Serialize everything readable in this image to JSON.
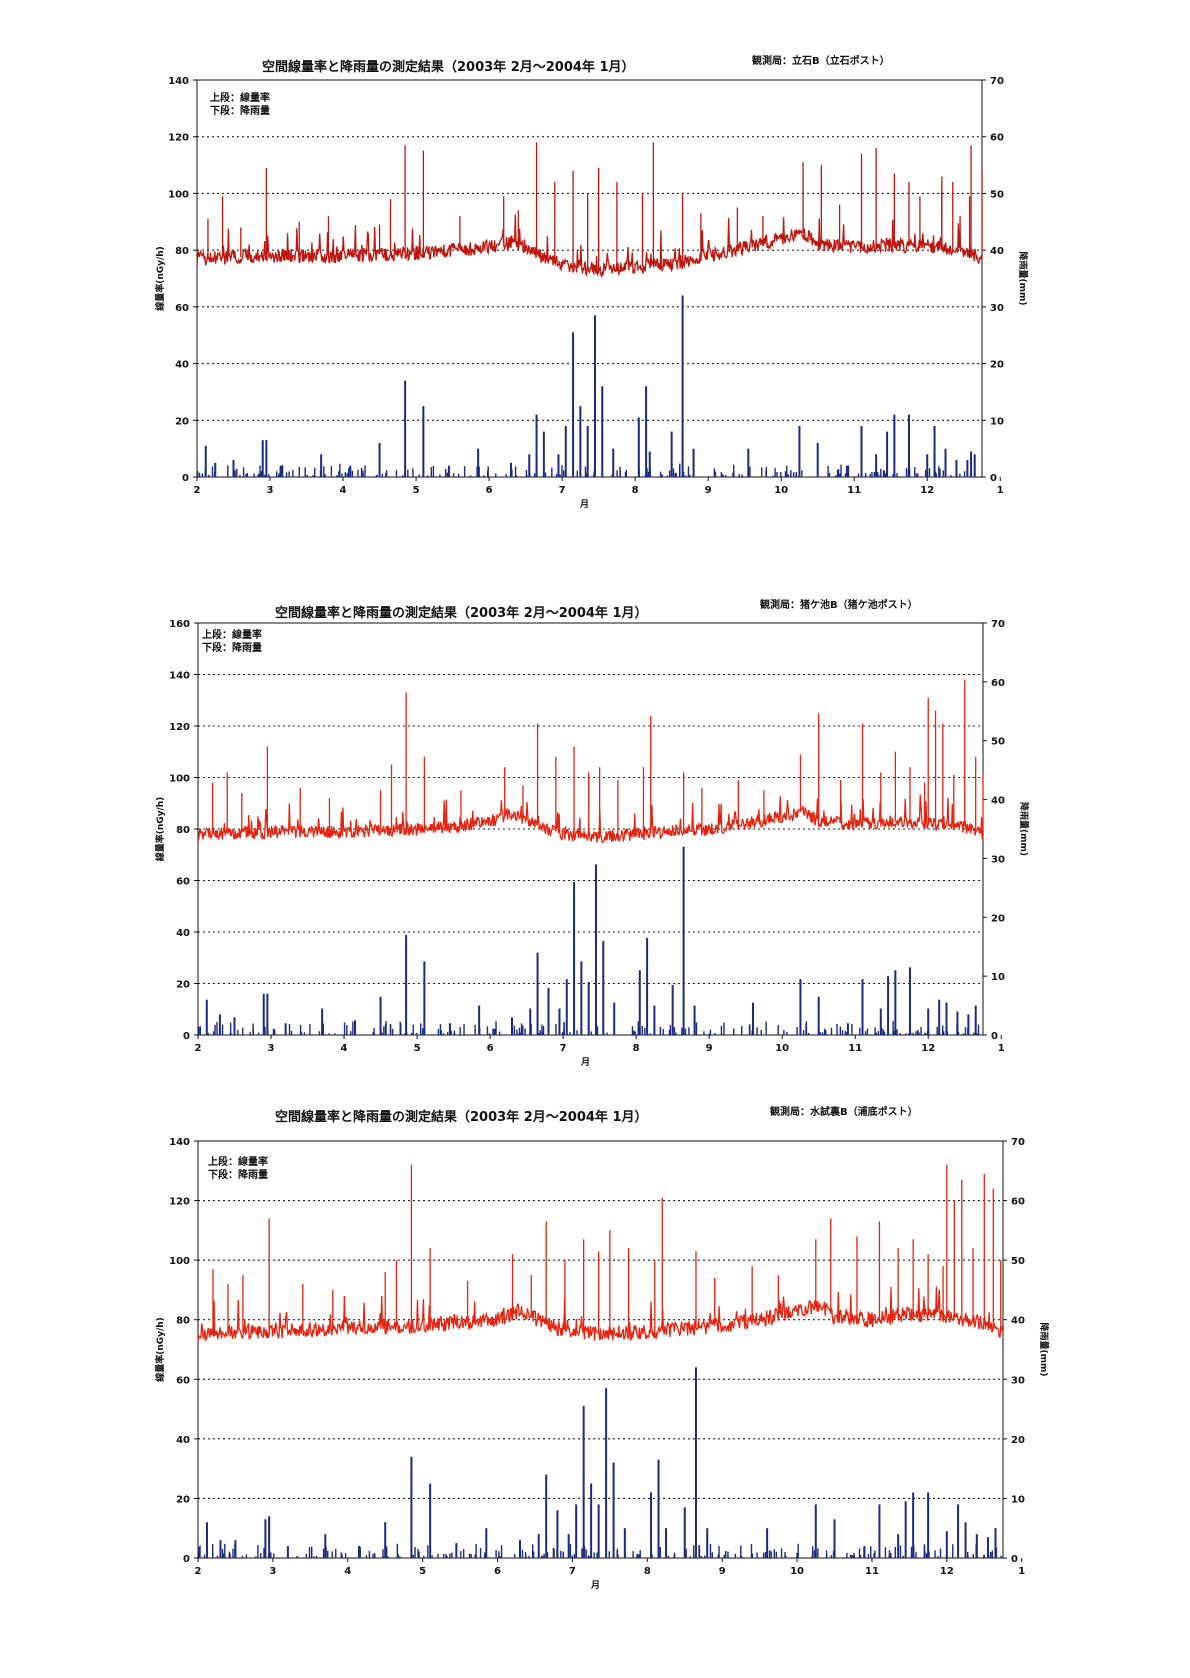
{
  "chart_data": [
    {
      "type": "line",
      "title": "空間線量率と降雨量の測定結果（2003年 2月～2004年 1月）",
      "station": "観測局：立石B（立石ポスト）",
      "legend": [
        "上段：線量率",
        "下段：降雨量"
      ],
      "xlabel": "月",
      "ylabel_left": "線量率(nGy/h)",
      "ylabel_right": "降雨量(mm)",
      "ylim_left": [
        0,
        140
      ],
      "ylim_right": [
        0,
        70
      ],
      "yticks_left": [
        0,
        20,
        40,
        60,
        80,
        100,
        120,
        140
      ],
      "yticks_right": [
        0,
        10,
        20,
        30,
        40,
        50,
        60,
        70
      ],
      "xticks": [
        "2",
        "3",
        "4",
        "5",
        "6",
        "7",
        "8",
        "9",
        "10",
        "11",
        "12",
        "1"
      ],
      "xlim": [
        2,
        12.75
      ],
      "grid": "dotted-horizontal",
      "colors": {
        "dose": "#c0140c",
        "rain": "#1a2a80"
      },
      "series": [
        {
          "kind": "dose_baseline",
          "x": [
            2,
            3,
            4,
            5,
            5.5,
            6,
            6.3,
            6.7,
            7,
            7.5,
            8,
            8.5,
            9,
            9.5,
            10,
            10.3,
            10.5,
            11,
            11.5,
            12,
            12.5,
            12.75
          ],
          "values": [
            77,
            78,
            78,
            79,
            80,
            81,
            83,
            78,
            75,
            73,
            74,
            75,
            78,
            81,
            84,
            86,
            82,
            81,
            82,
            81,
            80,
            77
          ]
        },
        {
          "kind": "dose_peaks",
          "x": [
            2.15,
            2.35,
            2.6,
            2.95,
            3.4,
            3.8,
            4.5,
            4.65,
            4.85,
            5.1,
            5.6,
            6.2,
            6.4,
            6.65,
            6.9,
            7.15,
            7.35,
            7.5,
            7.75,
            8.1,
            8.25,
            8.65,
            8.9,
            9.4,
            9.75,
            10.3,
            10.55,
            10.8,
            11.1,
            11.3,
            11.55,
            11.75,
            11.9,
            12.2,
            12.35,
            12.6,
            12.75,
            12.2,
            12.45,
            12.58
          ],
          "values": [
            91,
            99,
            88,
            109,
            90,
            92,
            89,
            98,
            117,
            115,
            92,
            99,
            94,
            118,
            104,
            108,
            100,
            109,
            104,
            100,
            118,
            100,
            93,
            95,
            92,
            111,
            110,
            96,
            114,
            116,
            107,
            104,
            99,
            106,
            104,
            117,
            108,
            101,
            92,
            99
          ]
        },
        {
          "kind": "rain",
          "x": [
            2.12,
            2.25,
            2.5,
            2.9,
            2.95,
            3.15,
            3.7,
            4.1,
            4.5,
            4.85,
            5.1,
            5.45,
            5.85,
            6.3,
            6.55,
            6.65,
            6.75,
            6.95,
            7.05,
            7.15,
            7.25,
            7.35,
            7.45,
            7.55,
            7.7,
            8.05,
            8.15,
            8.2,
            8.5,
            8.65,
            8.8,
            9.55,
            10.25,
            10.5,
            10.9,
            11.1,
            11.3,
            11.45,
            11.55,
            11.75,
            12.0,
            12.1,
            12.25,
            12.4,
            12.55,
            12.6,
            12.65
          ],
          "values": [
            5.5,
            2.5,
            3,
            6.5,
            6.5,
            2,
            4,
            2,
            6,
            17,
            12.5,
            2,
            5,
            2.5,
            4,
            11,
            8,
            4,
            9,
            25.5,
            12.5,
            9,
            28.5,
            16,
            5,
            10.5,
            16,
            4.5,
            8,
            32,
            5,
            5,
            9,
            6,
            2,
            9,
            4,
            8,
            11,
            11,
            4,
            9,
            5,
            3,
            3,
            4.5,
            4
          ]
        }
      ]
    },
    {
      "type": "line",
      "title": "空間線量率と降雨量の測定結果（2003年 2月～2004年 1月）",
      "station": "観測局：猪ケ池B（猪ケ池ポスト）",
      "legend": [
        "上段：線量率",
        "下段：降雨量"
      ],
      "xlabel": "月",
      "ylabel_left": "線量率(nGy/h)",
      "ylabel_right": "降雨量(mm)",
      "ylim_left": [
        0,
        160
      ],
      "ylim_right": [
        0,
        70
      ],
      "yticks_left": [
        0,
        20,
        40,
        60,
        80,
        100,
        120,
        140,
        160
      ],
      "yticks_right": [
        0,
        10,
        20,
        30,
        40,
        50,
        60,
        70
      ],
      "xticks": [
        "2",
        "3",
        "4",
        "5",
        "6",
        "7",
        "8",
        "9",
        "10",
        "11",
        "12",
        "1"
      ],
      "xlim": [
        2,
        12.75
      ],
      "grid": "dotted-horizontal",
      "colors": {
        "dose": "#e8220e",
        "rain": "#1a2a80"
      },
      "series": [
        {
          "kind": "dose_baseline",
          "x": [
            2,
            3,
            4,
            5,
            5.5,
            6,
            6.3,
            6.7,
            7,
            7.5,
            8,
            8.5,
            9,
            9.5,
            10,
            10.3,
            10.5,
            11,
            11.5,
            12,
            12.5,
            12.75
          ],
          "values": [
            78,
            79,
            79,
            80,
            81,
            83,
            86,
            81,
            78,
            77,
            78,
            79,
            80,
            82,
            85,
            87,
            83,
            82,
            83,
            82,
            81,
            78
          ]
        },
        {
          "kind": "dose_peaks",
          "x": [
            2.2,
            2.4,
            2.6,
            2.95,
            3.4,
            3.8,
            4.5,
            4.65,
            4.85,
            5.1,
            5.6,
            6.2,
            6.45,
            6.65,
            6.9,
            7.15,
            7.35,
            7.5,
            7.75,
            8.1,
            8.2,
            8.65,
            8.9,
            9.4,
            9.75,
            10.25,
            10.5,
            10.8,
            11.1,
            11.35,
            11.55,
            11.75,
            11.95,
            12.0,
            12.1,
            12.2,
            12.35,
            12.5,
            12.65,
            12.75
          ],
          "values": [
            98,
            102,
            94,
            112,
            96,
            92,
            95,
            105,
            133,
            108,
            95,
            104,
            97,
            121,
            108,
            112,
            102,
            104,
            99,
            104,
            124,
            102,
            96,
            99,
            95,
            109,
            125,
            99,
            121,
            102,
            110,
            104,
            98,
            131,
            126,
            121,
            101,
            138,
            108,
            102
          ]
        },
        {
          "kind": "rain",
          "x": [
            2.12,
            2.3,
            2.5,
            2.9,
            2.95,
            3.2,
            3.7,
            4.15,
            4.5,
            4.85,
            5.1,
            5.45,
            5.85,
            6.3,
            6.55,
            6.65,
            6.8,
            6.95,
            7.05,
            7.15,
            7.25,
            7.35,
            7.45,
            7.55,
            7.7,
            8.05,
            8.15,
            8.25,
            8.5,
            8.65,
            8.8,
            9.6,
            10.25,
            10.5,
            10.9,
            11.1,
            11.35,
            11.45,
            11.55,
            11.75,
            12.0,
            12.15,
            12.25,
            12.4,
            12.55,
            12.65
          ],
          "values": [
            6,
            3.5,
            3,
            7,
            7,
            2,
            4.5,
            2.5,
            6.5,
            17,
            12.5,
            2,
            5,
            3,
            4.5,
            14,
            8,
            4.5,
            9.5,
            26,
            12.5,
            9,
            29,
            16,
            5.5,
            11,
            16.5,
            5,
            8.5,
            32,
            5,
            5.5,
            9.5,
            6.5,
            2,
            9.5,
            4.5,
            10,
            11,
            11.5,
            4.5,
            6,
            5.5,
            4,
            3.5,
            5
          ]
        }
      ]
    },
    {
      "type": "line",
      "title": "空間線量率と降雨量の測定結果（2003年 2月～2004年 1月）",
      "station": "観測局：水試裏B（浦底ポスト）",
      "legend": [
        "上段：線量率",
        "下段：降雨量"
      ],
      "xlabel": "月",
      "ylabel_left": "線量率(nGy/h)",
      "ylabel_right": "降雨量(mm)",
      "ylim_left": [
        0,
        140
      ],
      "ylim_right": [
        0,
        70
      ],
      "yticks_left": [
        0,
        20,
        40,
        60,
        80,
        100,
        120,
        140
      ],
      "yticks_right": [
        0,
        10,
        20,
        30,
        40,
        50,
        60,
        70
      ],
      "xticks": [
        "2",
        "3",
        "4",
        "5",
        "6",
        "7",
        "8",
        "9",
        "10",
        "11",
        "12",
        "1"
      ],
      "xlim": [
        2,
        12.75
      ],
      "grid": "dotted-horizontal",
      "colors": {
        "dose": "#e8220e",
        "rain": "#1a2a80"
      },
      "series": [
        {
          "kind": "dose_baseline",
          "x": [
            2,
            3,
            4,
            5,
            5.5,
            6,
            6.3,
            6.7,
            7,
            7.5,
            8,
            8.5,
            9,
            9.5,
            10,
            10.3,
            10.5,
            11,
            11.5,
            12,
            12.5,
            12.75
          ],
          "values": [
            75,
            76,
            77,
            78,
            79,
            80,
            83,
            78,
            76,
            75,
            76,
            77,
            78,
            80,
            83,
            85,
            81,
            80,
            82,
            81,
            79,
            75
          ]
        },
        {
          "kind": "dose_peaks",
          "x": [
            2.2,
            2.4,
            2.6,
            2.95,
            3.4,
            3.8,
            4.5,
            4.65,
            4.85,
            5.1,
            5.6,
            6.2,
            6.45,
            6.65,
            6.9,
            7.15,
            7.35,
            7.5,
            7.75,
            8.1,
            8.2,
            8.65,
            8.9,
            9.4,
            9.75,
            10.25,
            10.45,
            10.8,
            11.1,
            11.35,
            11.55,
            11.75,
            11.95,
            12.0,
            12.1,
            12.2,
            12.35,
            12.5,
            12.62,
            12.72
          ],
          "values": [
            97,
            92,
            95,
            114,
            92,
            90,
            96,
            100,
            132,
            104,
            93,
            102,
            95,
            113,
            100,
            107,
            103,
            110,
            104,
            100,
            121,
            103,
            94,
            98,
            95,
            107,
            114,
            108,
            113,
            104,
            107,
            102,
            98,
            132,
            120,
            127,
            104,
            129,
            124,
            100
          ]
        },
        {
          "kind": "rain",
          "x": [
            2.12,
            2.3,
            2.5,
            2.9,
            2.95,
            3.2,
            3.7,
            4.15,
            4.5,
            4.85,
            5.1,
            5.45,
            5.85,
            6.3,
            6.55,
            6.65,
            6.8,
            6.95,
            7.05,
            7.15,
            7.25,
            7.35,
            7.45,
            7.55,
            7.7,
            8.05,
            8.15,
            8.25,
            8.5,
            8.65,
            8.8,
            9.6,
            10.25,
            10.5,
            10.9,
            11.1,
            11.35,
            11.45,
            11.55,
            11.75,
            12.0,
            12.15,
            12.25,
            12.4,
            12.55,
            12.65
          ],
          "values": [
            6,
            3,
            3,
            6.5,
            7,
            2,
            4,
            2,
            6,
            17,
            12.5,
            2.5,
            5,
            3,
            4,
            14,
            8,
            4,
            9,
            25.5,
            12.5,
            9,
            28.5,
            16,
            5,
            11,
            16.5,
            5,
            8.5,
            32,
            5,
            5,
            9,
            6.5,
            2,
            9,
            4,
            9.5,
            11,
            11,
            4.5,
            9,
            6,
            4,
            3.5,
            5
          ]
        }
      ]
    }
  ]
}
